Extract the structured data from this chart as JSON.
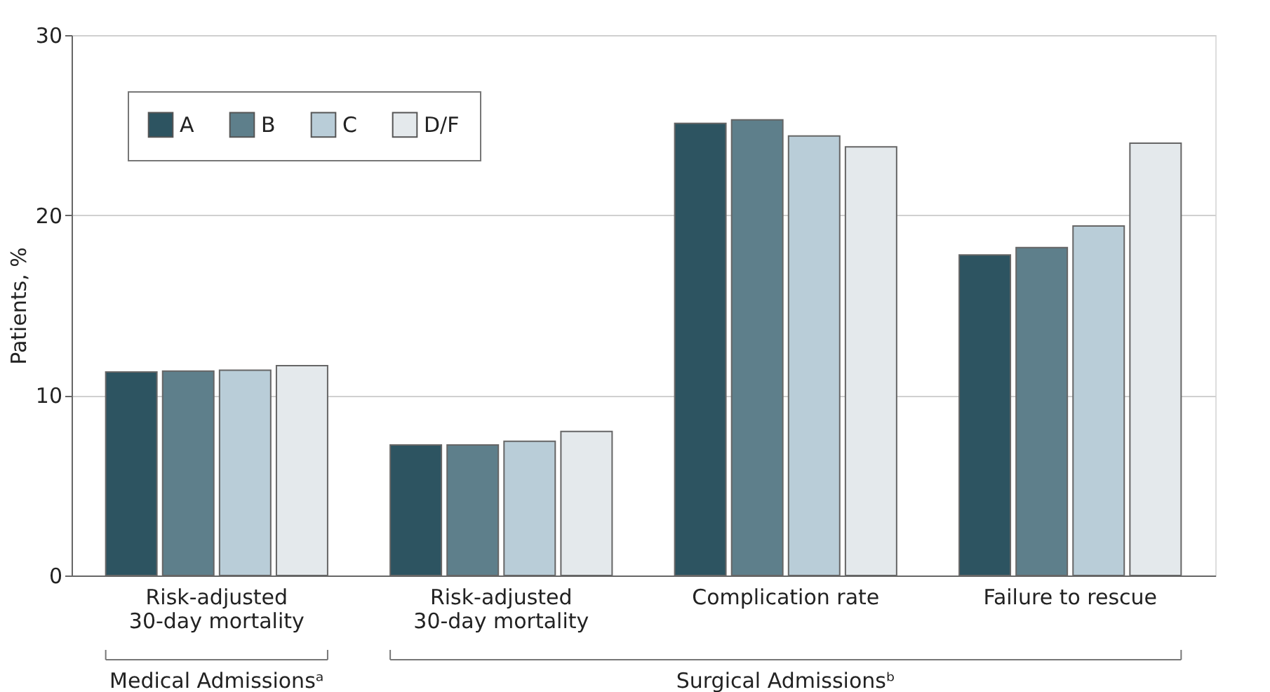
{
  "chart_data": {
    "type": "bar",
    "categories": [
      "Risk-adjusted\n30-day mortality",
      "Risk-adjusted\n30-day mortality",
      "Complication rate",
      "Failure to rescue"
    ],
    "series": [
      {
        "name": "A",
        "color": "#2d5461",
        "values": [
          11.3,
          7.25,
          25.1,
          17.8
        ]
      },
      {
        "name": "B",
        "color": "#5e7f8b",
        "values": [
          11.35,
          7.25,
          25.3,
          18.2
        ]
      },
      {
        "name": "C",
        "color": "#b9cdd8",
        "values": [
          11.4,
          7.45,
          24.4,
          19.4
        ]
      },
      {
        "name": "D/F",
        "color": "#e4e9ec",
        "values": [
          11.65,
          8.0,
          23.8,
          24.0
        ]
      }
    ],
    "ylabel": "Patients, %",
    "ylim": [
      0,
      30
    ],
    "yticks": [
      0,
      10,
      20,
      30
    ],
    "grid": "y",
    "legend": "top left",
    "annotations": [
      "Medical Admissionsᵃ",
      "Surgical Admissionsᵇ"
    ]
  }
}
